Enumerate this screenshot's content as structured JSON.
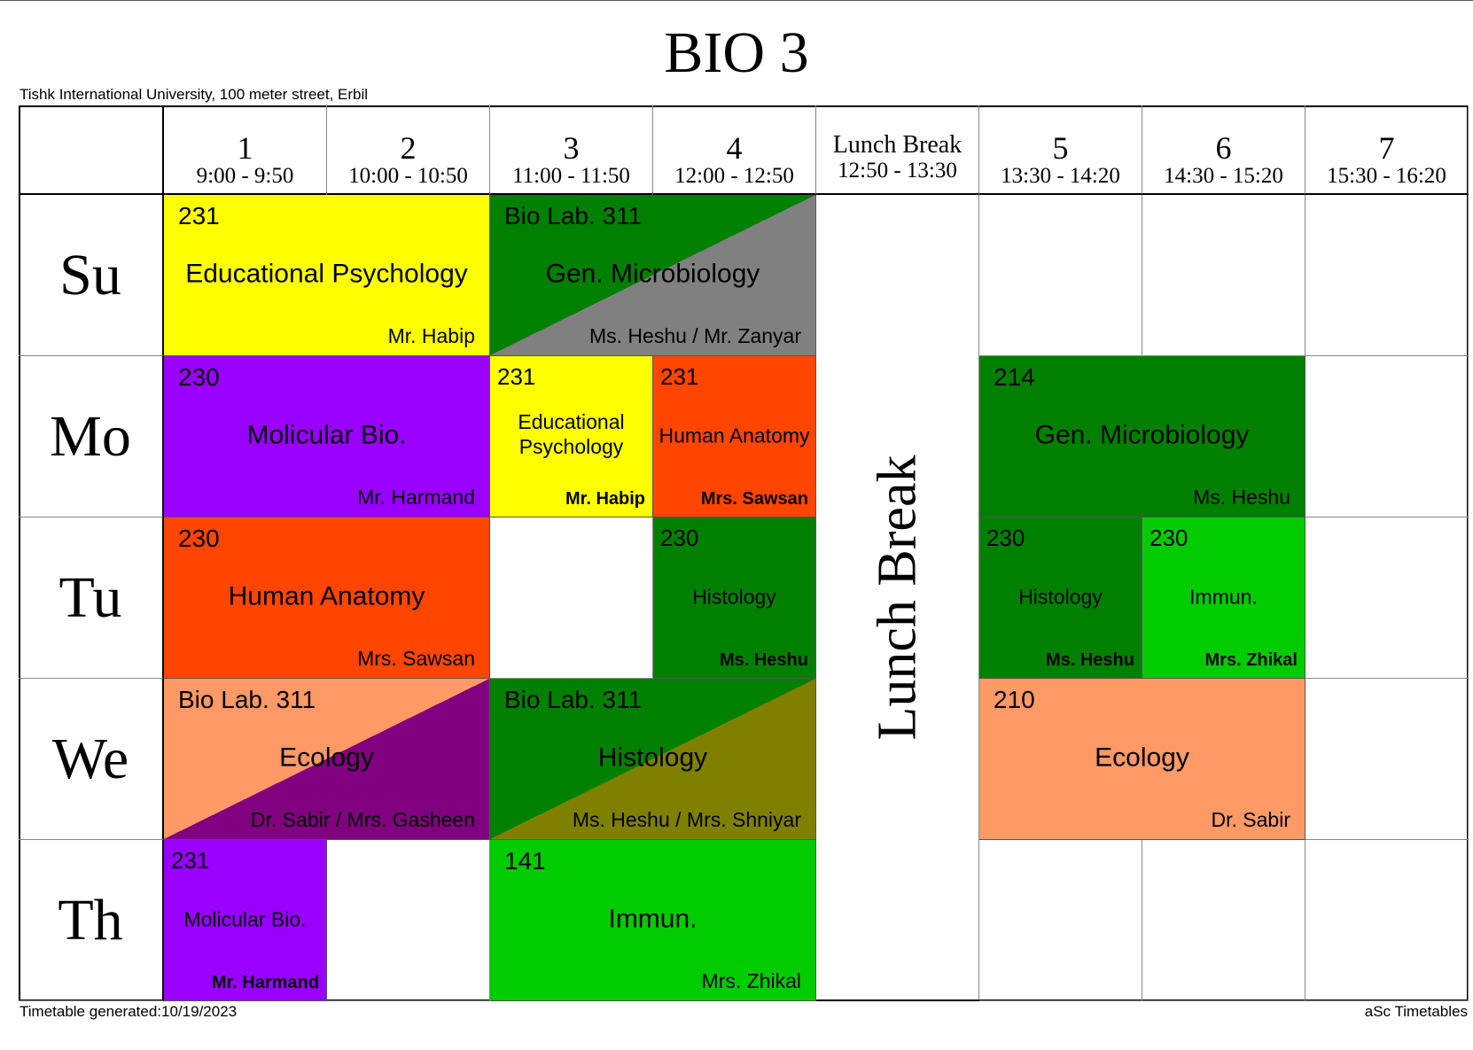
{
  "title": "BIO 3",
  "subtitle": "Tishk International University, 100 meter street, Erbil",
  "footer_left": "Timetable generated:10/19/2023",
  "footer_right": "aSc Timetables",
  "periods": [
    {
      "num": "1",
      "time": "9:00 - 9:50"
    },
    {
      "num": "2",
      "time": "10:00 - 10:50"
    },
    {
      "num": "3",
      "time": "11:00 - 11:50"
    },
    {
      "num": "4",
      "time": "12:00 - 12:50"
    },
    {
      "num": "Lunch Break",
      "time": "12:50 - 13:30",
      "lunch": true
    },
    {
      "num": "5",
      "time": "13:30 - 14:20"
    },
    {
      "num": "6",
      "time": "14:30 - 15:20"
    },
    {
      "num": "7",
      "time": "15:30 - 16:20"
    }
  ],
  "days": [
    "Su",
    "Mo",
    "Tu",
    "We",
    "Th"
  ],
  "lunch_label": "Lunch Break",
  "lessons": [
    {
      "day": 0,
      "col": 0,
      "span": 2,
      "room": "231",
      "subject": "Educational Psychology",
      "teacher": "Mr. Habip",
      "color": "#FFFF00"
    },
    {
      "day": 0,
      "col": 2,
      "span": 2,
      "room": "Bio Lab. 311",
      "subject": "Gen. Microbiology",
      "teacher": "Ms. Heshu / Mr. Zanyar",
      "color": "#008000",
      "color2": "#808080"
    },
    {
      "day": 1,
      "col": 0,
      "span": 2,
      "room": "230",
      "subject": "Molicular Bio.",
      "teacher": "Mr. Harmand",
      "color": "#9900FF"
    },
    {
      "day": 1,
      "col": 2,
      "span": 1,
      "room": "231",
      "subject": "Educational Psychology",
      "teacher": "Mr. Habip",
      "color": "#FFFF00",
      "small": true
    },
    {
      "day": 1,
      "col": 3,
      "span": 1,
      "room": "231",
      "subject": "Human Anatomy",
      "teacher": "Mrs. Sawsan",
      "color": "#FF4500",
      "small": true
    },
    {
      "day": 1,
      "col": 5,
      "span": 2,
      "room": "214",
      "subject": "Gen. Microbiology",
      "teacher": "Ms. Heshu",
      "color": "#008000"
    },
    {
      "day": 2,
      "col": 0,
      "span": 2,
      "room": "230",
      "subject": "Human Anatomy",
      "teacher": "Mrs. Sawsan",
      "color": "#FF4500"
    },
    {
      "day": 2,
      "col": 3,
      "span": 1,
      "room": "230",
      "subject": "Histology",
      "teacher": "Ms. Heshu",
      "color": "#008000",
      "small": true
    },
    {
      "day": 2,
      "col": 5,
      "span": 1,
      "room": "230",
      "subject": "Histology",
      "teacher": "Ms. Heshu",
      "color": "#008000",
      "small": true
    },
    {
      "day": 2,
      "col": 6,
      "span": 1,
      "room": "230",
      "subject": "Immun.",
      "teacher": "Mrs. Zhikal",
      "color": "#00CC00",
      "small": true
    },
    {
      "day": 3,
      "col": 0,
      "span": 2,
      "room": "Bio Lab. 311",
      "subject": "Ecology",
      "teacher": "Dr. Sabir / Mrs. Gasheen",
      "color": "#FF9966",
      "color2": "#800080"
    },
    {
      "day": 3,
      "col": 2,
      "span": 2,
      "room": "Bio Lab. 311",
      "subject": "Histology",
      "teacher": "Ms. Heshu / Mrs. Shniyar",
      "color": "#008000",
      "color2": "#808000"
    },
    {
      "day": 3,
      "col": 5,
      "span": 2,
      "room": "210",
      "subject": "Ecology",
      "teacher": "Dr. Sabir",
      "color": "#FF9966"
    },
    {
      "day": 4,
      "col": 0,
      "span": 1,
      "room": "231",
      "subject": "Molicular Bio.",
      "teacher": "Mr. Harmand",
      "color": "#9900FF",
      "small": true
    },
    {
      "day": 4,
      "col": 2,
      "span": 2,
      "room": "141",
      "subject": "Immun.",
      "teacher": "Mrs. Zhikal",
      "color": "#00CC00"
    }
  ]
}
